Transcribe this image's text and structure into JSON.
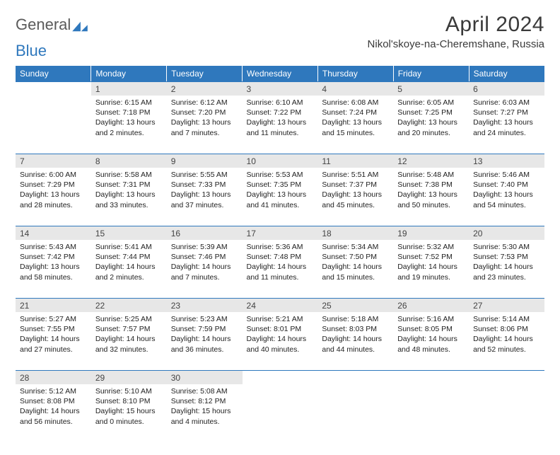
{
  "logo": {
    "part1": "General",
    "part2": "Blue"
  },
  "title": "April 2024",
  "location": "Nikol'skoye-na-Cheremshane, Russia",
  "colors": {
    "header_bg": "#2f78bd",
    "header_text": "#ffffff",
    "daynum_bg": "#e7e7e7",
    "border": "#2f78bd",
    "body_text": "#222222",
    "logo_gray": "#5a5a5a",
    "logo_blue": "#2f78bd"
  },
  "weekdays": [
    "Sunday",
    "Monday",
    "Tuesday",
    "Wednesday",
    "Thursday",
    "Friday",
    "Saturday"
  ],
  "weeks": [
    [
      {
        "n": "",
        "sr": "",
        "ss": "",
        "dl1": "",
        "dl2": ""
      },
      {
        "n": "1",
        "sr": "Sunrise: 6:15 AM",
        "ss": "Sunset: 7:18 PM",
        "dl1": "Daylight: 13 hours",
        "dl2": "and 2 minutes."
      },
      {
        "n": "2",
        "sr": "Sunrise: 6:12 AM",
        "ss": "Sunset: 7:20 PM",
        "dl1": "Daylight: 13 hours",
        "dl2": "and 7 minutes."
      },
      {
        "n": "3",
        "sr": "Sunrise: 6:10 AM",
        "ss": "Sunset: 7:22 PM",
        "dl1": "Daylight: 13 hours",
        "dl2": "and 11 minutes."
      },
      {
        "n": "4",
        "sr": "Sunrise: 6:08 AM",
        "ss": "Sunset: 7:24 PM",
        "dl1": "Daylight: 13 hours",
        "dl2": "and 15 minutes."
      },
      {
        "n": "5",
        "sr": "Sunrise: 6:05 AM",
        "ss": "Sunset: 7:25 PM",
        "dl1": "Daylight: 13 hours",
        "dl2": "and 20 minutes."
      },
      {
        "n": "6",
        "sr": "Sunrise: 6:03 AM",
        "ss": "Sunset: 7:27 PM",
        "dl1": "Daylight: 13 hours",
        "dl2": "and 24 minutes."
      }
    ],
    [
      {
        "n": "7",
        "sr": "Sunrise: 6:00 AM",
        "ss": "Sunset: 7:29 PM",
        "dl1": "Daylight: 13 hours",
        "dl2": "and 28 minutes."
      },
      {
        "n": "8",
        "sr": "Sunrise: 5:58 AM",
        "ss": "Sunset: 7:31 PM",
        "dl1": "Daylight: 13 hours",
        "dl2": "and 33 minutes."
      },
      {
        "n": "9",
        "sr": "Sunrise: 5:55 AM",
        "ss": "Sunset: 7:33 PM",
        "dl1": "Daylight: 13 hours",
        "dl2": "and 37 minutes."
      },
      {
        "n": "10",
        "sr": "Sunrise: 5:53 AM",
        "ss": "Sunset: 7:35 PM",
        "dl1": "Daylight: 13 hours",
        "dl2": "and 41 minutes."
      },
      {
        "n": "11",
        "sr": "Sunrise: 5:51 AM",
        "ss": "Sunset: 7:37 PM",
        "dl1": "Daylight: 13 hours",
        "dl2": "and 45 minutes."
      },
      {
        "n": "12",
        "sr": "Sunrise: 5:48 AM",
        "ss": "Sunset: 7:38 PM",
        "dl1": "Daylight: 13 hours",
        "dl2": "and 50 minutes."
      },
      {
        "n": "13",
        "sr": "Sunrise: 5:46 AM",
        "ss": "Sunset: 7:40 PM",
        "dl1": "Daylight: 13 hours",
        "dl2": "and 54 minutes."
      }
    ],
    [
      {
        "n": "14",
        "sr": "Sunrise: 5:43 AM",
        "ss": "Sunset: 7:42 PM",
        "dl1": "Daylight: 13 hours",
        "dl2": "and 58 minutes."
      },
      {
        "n": "15",
        "sr": "Sunrise: 5:41 AM",
        "ss": "Sunset: 7:44 PM",
        "dl1": "Daylight: 14 hours",
        "dl2": "and 2 minutes."
      },
      {
        "n": "16",
        "sr": "Sunrise: 5:39 AM",
        "ss": "Sunset: 7:46 PM",
        "dl1": "Daylight: 14 hours",
        "dl2": "and 7 minutes."
      },
      {
        "n": "17",
        "sr": "Sunrise: 5:36 AM",
        "ss": "Sunset: 7:48 PM",
        "dl1": "Daylight: 14 hours",
        "dl2": "and 11 minutes."
      },
      {
        "n": "18",
        "sr": "Sunrise: 5:34 AM",
        "ss": "Sunset: 7:50 PM",
        "dl1": "Daylight: 14 hours",
        "dl2": "and 15 minutes."
      },
      {
        "n": "19",
        "sr": "Sunrise: 5:32 AM",
        "ss": "Sunset: 7:52 PM",
        "dl1": "Daylight: 14 hours",
        "dl2": "and 19 minutes."
      },
      {
        "n": "20",
        "sr": "Sunrise: 5:30 AM",
        "ss": "Sunset: 7:53 PM",
        "dl1": "Daylight: 14 hours",
        "dl2": "and 23 minutes."
      }
    ],
    [
      {
        "n": "21",
        "sr": "Sunrise: 5:27 AM",
        "ss": "Sunset: 7:55 PM",
        "dl1": "Daylight: 14 hours",
        "dl2": "and 27 minutes."
      },
      {
        "n": "22",
        "sr": "Sunrise: 5:25 AM",
        "ss": "Sunset: 7:57 PM",
        "dl1": "Daylight: 14 hours",
        "dl2": "and 32 minutes."
      },
      {
        "n": "23",
        "sr": "Sunrise: 5:23 AM",
        "ss": "Sunset: 7:59 PM",
        "dl1": "Daylight: 14 hours",
        "dl2": "and 36 minutes."
      },
      {
        "n": "24",
        "sr": "Sunrise: 5:21 AM",
        "ss": "Sunset: 8:01 PM",
        "dl1": "Daylight: 14 hours",
        "dl2": "and 40 minutes."
      },
      {
        "n": "25",
        "sr": "Sunrise: 5:18 AM",
        "ss": "Sunset: 8:03 PM",
        "dl1": "Daylight: 14 hours",
        "dl2": "and 44 minutes."
      },
      {
        "n": "26",
        "sr": "Sunrise: 5:16 AM",
        "ss": "Sunset: 8:05 PM",
        "dl1": "Daylight: 14 hours",
        "dl2": "and 48 minutes."
      },
      {
        "n": "27",
        "sr": "Sunrise: 5:14 AM",
        "ss": "Sunset: 8:06 PM",
        "dl1": "Daylight: 14 hours",
        "dl2": "and 52 minutes."
      }
    ],
    [
      {
        "n": "28",
        "sr": "Sunrise: 5:12 AM",
        "ss": "Sunset: 8:08 PM",
        "dl1": "Daylight: 14 hours",
        "dl2": "and 56 minutes."
      },
      {
        "n": "29",
        "sr": "Sunrise: 5:10 AM",
        "ss": "Sunset: 8:10 PM",
        "dl1": "Daylight: 15 hours",
        "dl2": "and 0 minutes."
      },
      {
        "n": "30",
        "sr": "Sunrise: 5:08 AM",
        "ss": "Sunset: 8:12 PM",
        "dl1": "Daylight: 15 hours",
        "dl2": "and 4 minutes."
      },
      {
        "n": "",
        "sr": "",
        "ss": "",
        "dl1": "",
        "dl2": ""
      },
      {
        "n": "",
        "sr": "",
        "ss": "",
        "dl1": "",
        "dl2": ""
      },
      {
        "n": "",
        "sr": "",
        "ss": "",
        "dl1": "",
        "dl2": ""
      },
      {
        "n": "",
        "sr": "",
        "ss": "",
        "dl1": "",
        "dl2": ""
      }
    ]
  ]
}
